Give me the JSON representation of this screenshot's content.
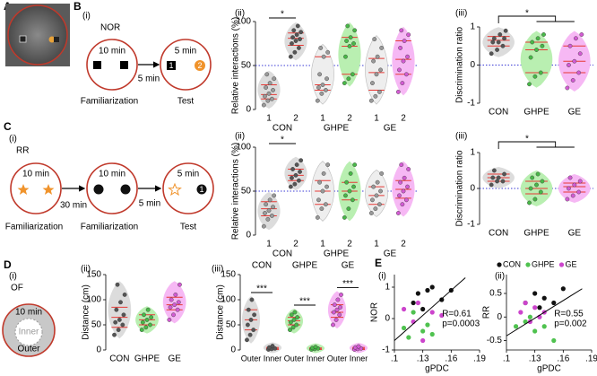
{
  "panels": {
    "A": {
      "letter": "A"
    },
    "B": {
      "letter": "B",
      "i": "(i)",
      "ii": "(ii)",
      "iii": "(iii)",
      "task": "NOR",
      "fam_time": "10 min",
      "test_time": "5 min",
      "delay": "5 min",
      "obj1": "1",
      "obj2": "2",
      "phase1": "Familiarization",
      "phase2": "Test"
    },
    "C": {
      "letter": "C",
      "i": "(i)",
      "ii": "(ii)",
      "iii": "(iii)",
      "task": "RR",
      "fam1_time": "10 min",
      "fam2_time": "10 min",
      "test_time": "5 min",
      "delay1": "30 min",
      "delay2": "5 min",
      "obj1": "1",
      "phase1": "Familiarization",
      "phase2": "Familiarization",
      "phase3": "Test"
    },
    "D": {
      "letter": "D",
      "i": "(i)",
      "ii": "(ii)",
      "iii": "(iii)",
      "task": "OF",
      "time": "10 min",
      "inner": "Inner",
      "outer": "Outer"
    },
    "E": {
      "letter": "E",
      "i": "(i)",
      "ii": "(ii)"
    }
  },
  "chart_data": [
    {
      "type": "violin",
      "ylabel": "Relative interactions (%)",
      "ylim": [
        0,
        100
      ],
      "yticks": [
        0,
        50,
        100
      ],
      "refline": 50,
      "categories": [
        "1",
        "2",
        "1",
        "2",
        "1",
        "2"
      ],
      "groups": [
        "CON",
        "GHPE",
        "GE"
      ],
      "brackets": [
        "*"
      ],
      "violins": [
        {
          "color": "#dcdcdc",
          "point_color": "#9a9a9a",
          "values": [
            5,
            10,
            12,
            15,
            18,
            22,
            25,
            30,
            35,
            40
          ],
          "quartiles": [
            12,
            17,
            28
          ]
        },
        {
          "color": "#dcdcdc",
          "point_color": "#555555",
          "values": [
            60,
            65,
            70,
            75,
            78,
            80,
            82,
            85,
            88,
            90,
            95
          ],
          "quartiles": [
            73,
            81,
            87
          ]
        },
        {
          "color": "#eeeeee",
          "point_color": "#9a9a9a",
          "values": [
            10,
            18,
            22,
            25,
            28,
            35,
            40,
            60,
            65,
            70
          ],
          "quartiles": [
            22,
            28,
            60
          ]
        },
        {
          "color": "#b9efb1",
          "point_color": "#48b848",
          "values": [
            30,
            35,
            40,
            60,
            72,
            75,
            78,
            82,
            90,
            95
          ],
          "quartiles": [
            40,
            72,
            82
          ]
        },
        {
          "color": "#eeeeee",
          "point_color": "#9a9a9a",
          "values": [
            10,
            15,
            20,
            30,
            40,
            45,
            55,
            60,
            70,
            80
          ],
          "quartiles": [
            22,
            42,
            58
          ]
        },
        {
          "color": "#f6b8f4",
          "point_color": "#d35bd3",
          "values": [
            20,
            30,
            40,
            45,
            55,
            60,
            70,
            78,
            85,
            90
          ],
          "quartiles": [
            40,
            57,
            78
          ]
        }
      ]
    },
    {
      "type": "violin",
      "ylabel": "Discrimination ratio",
      "ylim": [
        -1,
        1
      ],
      "yticks": [
        -1,
        0,
        1
      ],
      "refline": 0,
      "categories": [
        "CON",
        "GHPE",
        "GE"
      ],
      "brackets": [
        "*"
      ],
      "violins": [
        {
          "color": "#dcdcdc",
          "point_color": "#555555",
          "values": [
            0.3,
            0.4,
            0.5,
            0.6,
            0.6,
            0.7,
            0.7,
            0.8,
            0.9
          ],
          "quartiles": [
            0.5,
            0.65,
            0.75
          ]
        },
        {
          "color": "#b9efb1",
          "point_color": "#48b848",
          "values": [
            -0.5,
            -0.3,
            -0.2,
            0.2,
            0.4,
            0.5,
            0.6,
            0.7,
            0.8
          ],
          "quartiles": [
            -0.2,
            0.4,
            0.6
          ]
        },
        {
          "color": "#f6b8f4",
          "point_color": "#d35bd3",
          "values": [
            -0.6,
            -0.4,
            -0.2,
            0,
            0.1,
            0.3,
            0.5,
            0.7,
            0.8
          ],
          "quartiles": [
            -0.2,
            0.1,
            0.5
          ]
        }
      ]
    },
    {
      "type": "violin",
      "ylabel": "Relative interactions (%)",
      "ylim": [
        0,
        100
      ],
      "yticks": [
        0,
        50,
        100
      ],
      "refline": 50,
      "categories": [
        "1",
        "2",
        "1",
        "2",
        "1",
        "2"
      ],
      "groups": [
        "CON",
        "GHPE",
        "GE"
      ],
      "brackets": [
        "*"
      ],
      "violins": [
        {
          "color": "#dcdcdc",
          "point_color": "#9a9a9a",
          "values": [
            10,
            18,
            22,
            25,
            28,
            32,
            35,
            40,
            45
          ],
          "quartiles": [
            22,
            30,
            38
          ]
        },
        {
          "color": "#dcdcdc",
          "point_color": "#555555",
          "values": [
            55,
            58,
            62,
            65,
            68,
            72,
            75,
            80,
            85
          ],
          "quartiles": [
            62,
            68,
            75
          ]
        },
        {
          "color": "#eeeeee",
          "point_color": "#9a9a9a",
          "values": [
            20,
            30,
            35,
            40,
            50,
            55,
            60,
            70,
            80
          ],
          "quartiles": [
            35,
            50,
            62
          ]
        },
        {
          "color": "#b9efb1",
          "point_color": "#48b848",
          "values": [
            20,
            30,
            40,
            45,
            50,
            55,
            60,
            70,
            80
          ],
          "quartiles": [
            40,
            50,
            60
          ]
        },
        {
          "color": "#eeeeee",
          "point_color": "#9a9a9a",
          "values": [
            25,
            30,
            35,
            40,
            45,
            50,
            55,
            60,
            70
          ],
          "quartiles": [
            35,
            45,
            55
          ]
        },
        {
          "color": "#f6b8f4",
          "point_color": "#d35bd3",
          "values": [
            25,
            35,
            40,
            45,
            50,
            55,
            60,
            65,
            75,
            80
          ],
          "quartiles": [
            42,
            52,
            62
          ]
        }
      ]
    },
    {
      "type": "violin",
      "ylabel": "Discrimination ratio",
      "ylim": [
        -1,
        1
      ],
      "yticks": [
        -1,
        0,
        1
      ],
      "refline": 0,
      "categories": [
        "CON",
        "GHPE",
        "GE"
      ],
      "brackets": [
        "*"
      ],
      "violins": [
        {
          "color": "#dcdcdc",
          "point_color": "#555555",
          "values": [
            0.1,
            0.2,
            0.2,
            0.3,
            0.3,
            0.4,
            0.5
          ],
          "quartiles": [
            0.2,
            0.3,
            0.4
          ]
        },
        {
          "color": "#b9efb1",
          "point_color": "#48b848",
          "values": [
            -0.4,
            -0.3,
            -0.1,
            0,
            0.1,
            0.2,
            0.3,
            0.4
          ],
          "quartiles": [
            -0.15,
            0,
            0.2
          ]
        },
        {
          "color": "#f6b8f4",
          "point_color": "#d35bd3",
          "values": [
            -0.3,
            -0.2,
            -0.1,
            0,
            0.1,
            0.2,
            0.3
          ],
          "quartiles": [
            -0.1,
            0.05,
            0.15
          ]
        }
      ]
    },
    {
      "type": "violin",
      "ylabel": "Distance (cm)",
      "ylim": [
        0,
        150
      ],
      "yticks": [
        0,
        50,
        100,
        150
      ],
      "categories": [
        "CON",
        "GHPE",
        "GE"
      ],
      "violins": [
        {
          "color": "#dcdcdc",
          "point_color": "#555555",
          "values": [
            30,
            40,
            50,
            55,
            60,
            70,
            80,
            95,
            110,
            130
          ],
          "quartiles": [
            45,
            65,
            85
          ]
        },
        {
          "color": "#b9efb1",
          "point_color": "#48b848",
          "values": [
            40,
            45,
            50,
            55,
            60,
            65,
            70,
            80
          ],
          "quartiles": [
            50,
            60,
            70
          ]
        },
        {
          "color": "#f6b8f4",
          "point_color": "#d35bd3",
          "values": [
            60,
            70,
            80,
            85,
            90,
            95,
            100,
            110,
            130
          ],
          "quartiles": [
            80,
            90,
            105
          ]
        }
      ]
    },
    {
      "type": "violin",
      "ylabel": "Distance (cm)",
      "ylim": [
        0,
        150
      ],
      "yticks": [
        0,
        50,
        100,
        150
      ],
      "categories": [
        "Outer",
        "Inner",
        "Outer",
        "Inner",
        "Outer",
        "Inner"
      ],
      "groups": [
        "CON",
        "GHPE",
        "GE"
      ],
      "brackets": [
        "***",
        "***",
        "***"
      ],
      "violins": [
        {
          "color": "#dcdcdc",
          "point_color": "#555555",
          "values": [
            20,
            30,
            40,
            50,
            60,
            70,
            80,
            100
          ],
          "quartiles": [
            40,
            60,
            80
          ]
        },
        {
          "color": "#dcdcdc",
          "point_color": "#555555",
          "values": [
            1,
            2,
            3,
            5,
            8
          ],
          "quartiles": [
            1,
            3,
            5
          ]
        },
        {
          "color": "#b9efb1",
          "point_color": "#48b848",
          "values": [
            40,
            45,
            50,
            55,
            60,
            65,
            70,
            75
          ],
          "quartiles": [
            50,
            58,
            65
          ]
        },
        {
          "color": "#b9efb1",
          "point_color": "#48b848",
          "values": [
            1,
            2,
            3,
            4,
            6
          ],
          "quartiles": [
            1,
            2,
            4
          ]
        },
        {
          "color": "#f6b8f4",
          "point_color": "#d35bd3",
          "values": [
            50,
            60,
            70,
            75,
            80,
            85,
            90,
            100,
            110
          ],
          "quartiles": [
            65,
            75,
            90
          ]
        },
        {
          "color": "#f6b8f4",
          "point_color": "#d35bd3",
          "values": [
            1,
            2,
            3,
            5,
            7
          ],
          "quartiles": [
            1,
            3,
            5
          ]
        }
      ]
    },
    {
      "type": "scatter",
      "xlabel": "gPDC",
      "ylabel": "NOR",
      "xlim": [
        0.1,
        0.19
      ],
      "ylim": [
        -1,
        1.4
      ],
      "xticks": [
        {
          "value": 0.1,
          "label": ".1"
        },
        {
          "value": 0.13,
          "label": ".13"
        },
        {
          "value": 0.16,
          "label": ".16"
        },
        {
          "value": 0.19,
          "label": ".19"
        }
      ],
      "yticks": [
        -1,
        0,
        1
      ],
      "fit": {
        "x": [
          0.1,
          0.175
        ],
        "y": [
          -0.7,
          1.3
        ]
      },
      "annotations": [
        "R=0.61",
        "p=0.0003"
      ],
      "series": [
        {
          "color": "#111111",
          "x": [
            0.12,
            0.125,
            0.13,
            0.135,
            0.14,
            0.15,
            0.16
          ],
          "y": [
            0.5,
            0.8,
            0.3,
            0.9,
            1.0,
            0.6,
            0.9
          ]
        },
        {
          "color": "#4fc24f",
          "x": [
            0.11,
            0.115,
            0.12,
            0.13,
            0.135,
            0.14
          ],
          "y": [
            -0.3,
            -0.6,
            0.2,
            -0.4,
            -0.2,
            -0.5
          ]
        },
        {
          "color": "#cc44cc",
          "x": [
            0.11,
            0.12,
            0.125,
            0.13,
            0.14,
            0.15
          ],
          "y": [
            0.3,
            -0.1,
            0.5,
            -0.7,
            0.2,
            0.1
          ]
        }
      ]
    },
    {
      "type": "scatter",
      "xlabel": "gPDC",
      "ylabel": "RR",
      "xlim": [
        0.1,
        0.19
      ],
      "ylim": [
        -0.7,
        0.9
      ],
      "xticks": [
        {
          "value": 0.1,
          "label": ".1"
        },
        {
          "value": 0.13,
          "label": ".13"
        },
        {
          "value": 0.16,
          "label": ".16"
        },
        {
          "value": 0.19,
          "label": ".19"
        }
      ],
      "yticks": [
        -0.5,
        0,
        0.5
      ],
      "fit": {
        "x": [
          0.1,
          0.18
        ],
        "y": [
          -0.4,
          0.6
        ]
      },
      "annotations": [
        "R=0.55",
        "p=0.002"
      ],
      "series": [
        {
          "name": "CON",
          "color": "#111111",
          "x": [
            0.12,
            0.13,
            0.135,
            0.14,
            0.15,
            0.16
          ],
          "y": [
            0.3,
            0.5,
            0.2,
            0.4,
            0.3,
            0.6
          ]
        },
        {
          "name": "GHPE",
          "color": "#4fc24f",
          "x": [
            0.11,
            0.12,
            0.125,
            0.13,
            0.14,
            0.15
          ],
          "y": [
            -0.2,
            -0.1,
            0.0,
            -0.3,
            -0.2,
            -0.5
          ]
        },
        {
          "name": "GE",
          "color": "#cc44cc",
          "x": [
            0.115,
            0.12,
            0.125,
            0.13,
            0.135,
            0.14
          ],
          "y": [
            0.1,
            0.3,
            -0.1,
            0.2,
            0.0,
            0.1
          ]
        }
      ]
    }
  ]
}
